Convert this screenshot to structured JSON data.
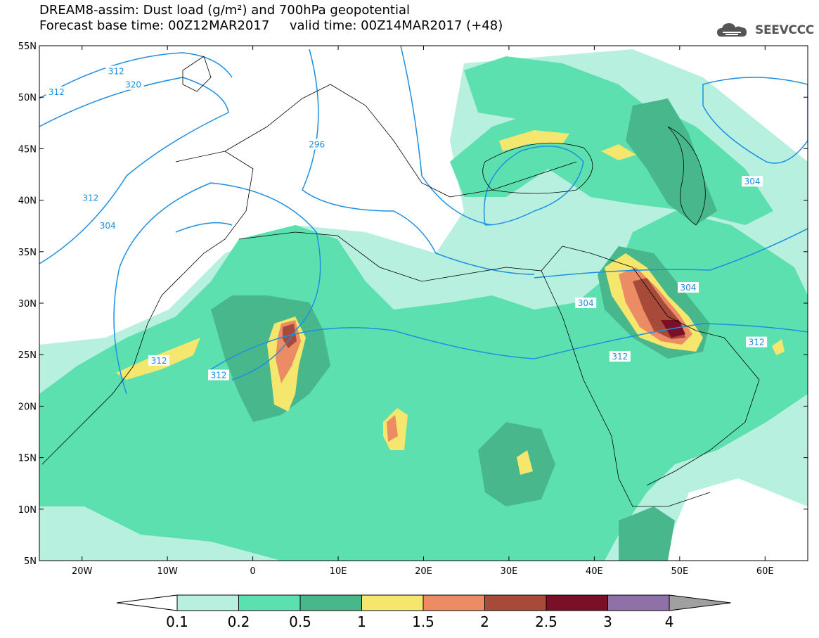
{
  "title": {
    "line1": "DREAM8-assim: Dust load (g/m²) and 700hPa geopotential",
    "line2": "Forecast base time: 00Z12MAR2017     valid time: 00Z14MAR2017 (+48)"
  },
  "logo": {
    "text": "SEEVCCC",
    "icon": "cloud-logo-icon"
  },
  "map": {
    "lon_range": [
      -25,
      65
    ],
    "lat_range": [
      5,
      55
    ],
    "lat_ticks": [
      "55N",
      "50N",
      "45N",
      "40N",
      "35N",
      "30N",
      "25N",
      "20N",
      "15N",
      "10N",
      "5N"
    ],
    "lon_ticks": [
      "20W",
      "10W",
      "0",
      "10E",
      "20E",
      "30E",
      "40E",
      "50E",
      "60E"
    ],
    "contour_color": "#1e8fe0",
    "contour_labels": [
      {
        "text": "312",
        "lon": -16,
        "lat": 52.5
      },
      {
        "text": "312",
        "lon": -23,
        "lat": 50.5
      },
      {
        "text": "320",
        "lon": -14,
        "lat": 51.2
      },
      {
        "text": "312",
        "lon": -19,
        "lat": 40.2
      },
      {
        "text": "304",
        "lon": -17,
        "lat": 37.5
      },
      {
        "text": "312",
        "lon": -11,
        "lat": 24.4
      },
      {
        "text": "312",
        "lon": -4,
        "lat": 23.0
      },
      {
        "text": "296",
        "lon": 7.5,
        "lat": 45.4
      },
      {
        "text": "304",
        "lon": 39,
        "lat": 30.0
      },
      {
        "text": "304",
        "lon": 51,
        "lat": 31.5
      },
      {
        "text": "312",
        "lon": 43,
        "lat": 24.8
      },
      {
        "text": "312",
        "lon": 59,
        "lat": 26.2
      },
      {
        "text": "304",
        "lon": 58.5,
        "lat": 41.8
      }
    ]
  },
  "colorbar": {
    "colors": [
      "#b8f0e0",
      "#5ce0b0",
      "#48b88c",
      "#f5e66e",
      "#eb8c64",
      "#a84a3a",
      "#7a1028",
      "#9070a8",
      "#a0a0a0"
    ],
    "labels": [
      "0.1",
      "0.2",
      "0.5",
      "1",
      "1.5",
      "2",
      "2.5",
      "3",
      "4"
    ]
  }
}
